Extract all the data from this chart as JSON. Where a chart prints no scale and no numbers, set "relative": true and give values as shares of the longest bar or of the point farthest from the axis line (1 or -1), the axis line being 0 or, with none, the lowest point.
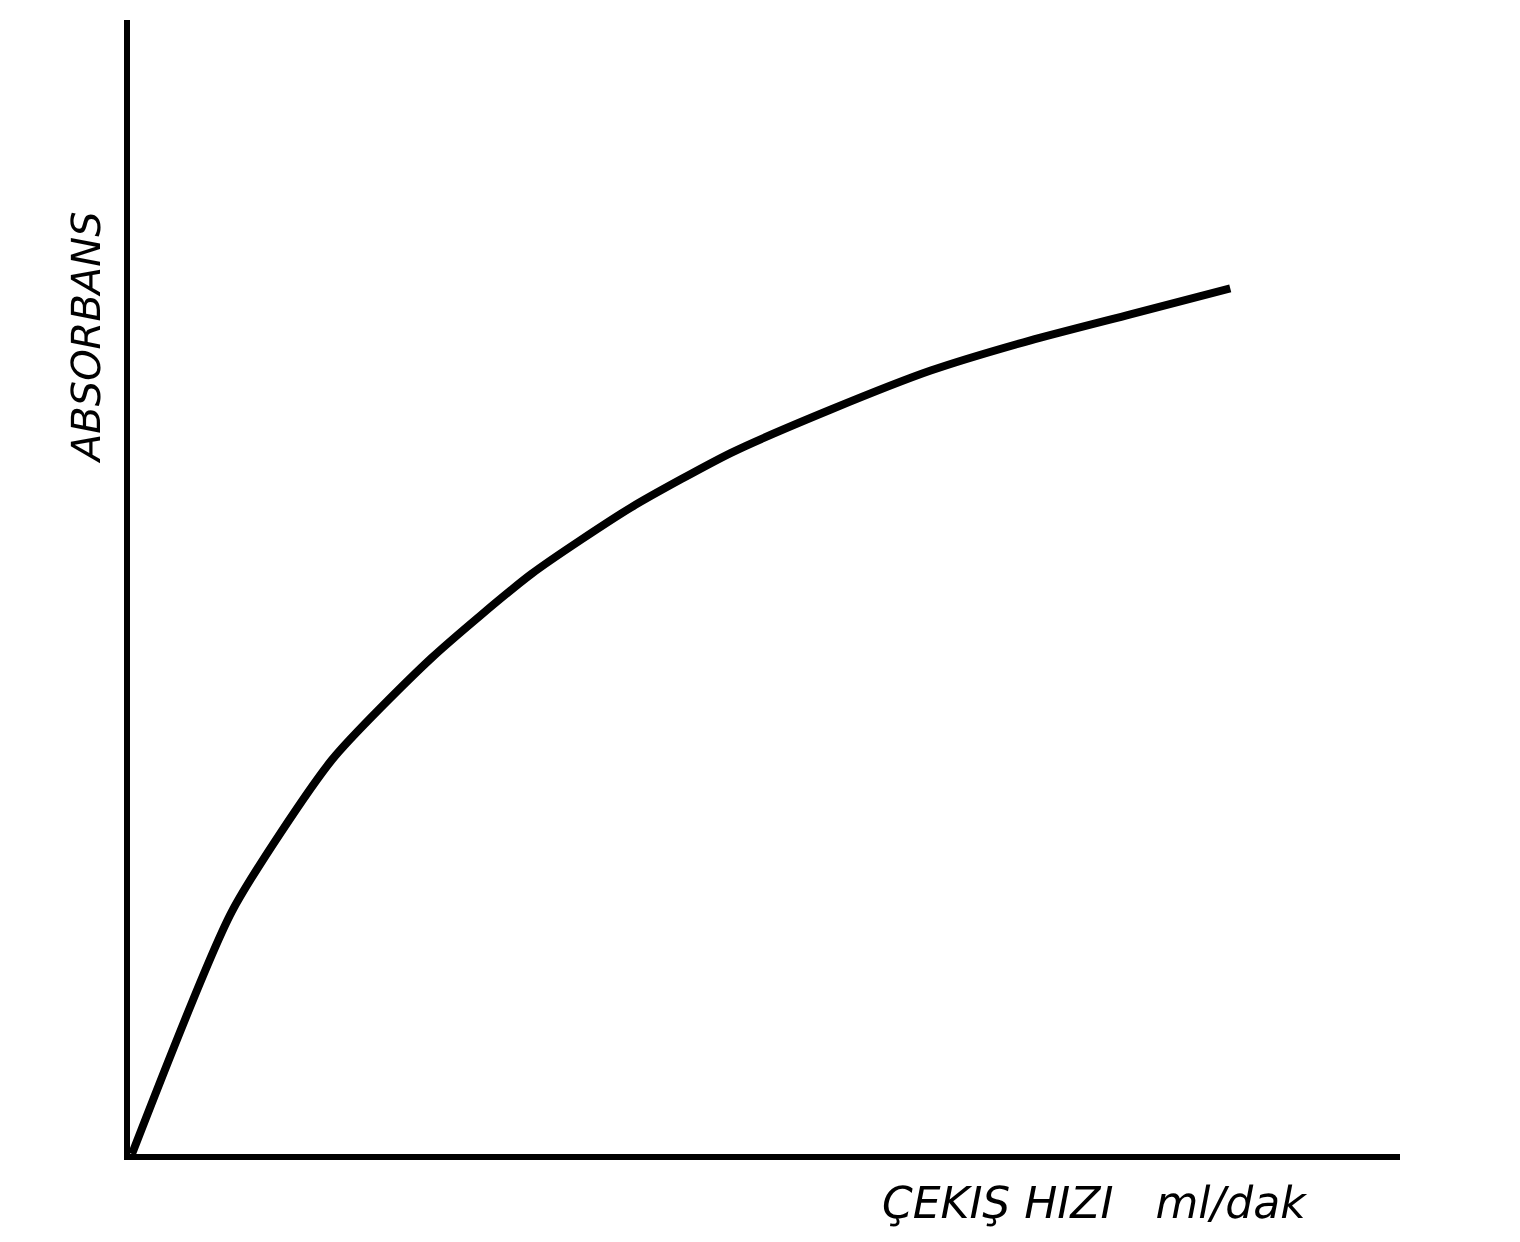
{
  "chart_data": {
    "type": "line",
    "relative": true,
    "xlabel": "ÇEKIŞ HIZI   ml/dak",
    "ylabel": "ABSORBANS",
    "categories": [
      null,
      null,
      null,
      null,
      null,
      null,
      null,
      null,
      null,
      null,
      null,
      null
    ],
    "series": [
      {
        "color": "#000000",
        "values": [
          0,
          0.28,
          0.455,
          0.573,
          0.67,
          0.747,
          0.81,
          0.86,
          0.905,
          0.94,
          0.97,
          1
        ]
      }
    ],
    "marker": "none",
    "line_style": "solid"
  }
}
